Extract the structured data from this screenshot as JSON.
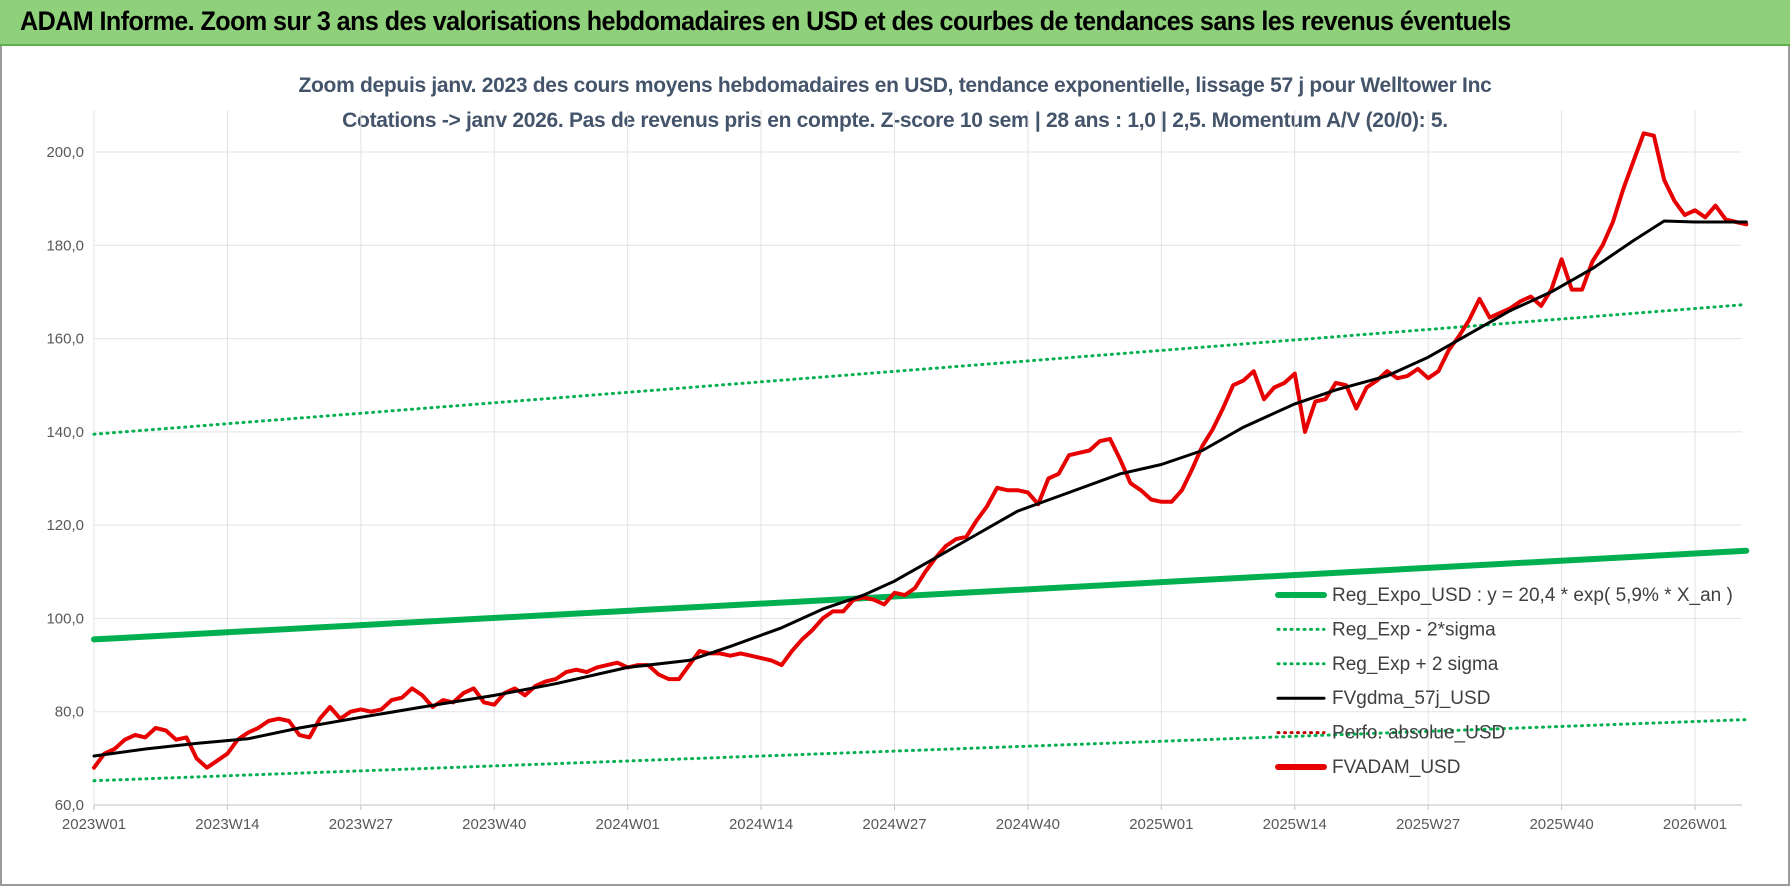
{
  "banner": {
    "title": "ADAM Informe. Zoom sur 3 ans des valorisations hebdomadaires en USD et des courbes de tendances sans les revenus éventuels"
  },
  "colors": {
    "banner_bg": "#8fd07a",
    "title_text": "#44546a",
    "reg_expo": "#00b050",
    "fvgdma": "#000000",
    "perfo": "#c00000",
    "fvadam": "#e60000"
  },
  "chart_data": {
    "type": "line",
    "title": "Zoom depuis janv. 2023 des cours moyens hebdomadaires en USD, tendance exponentielle, lissage 57 j pour Welltower Inc",
    "subtitle": "Cotations -> janv 2026. Pas de revenus pris en compte. Z-score 10 sem | 28 ans : 1,0 | 2,5. Momentum A/V (20/0): 5.",
    "xlabel": "",
    "ylabel": "",
    "ylim": [
      60,
      210
    ],
    "y_ticks": [
      "60,0",
      "80,0",
      "100,0",
      "120,0",
      "140,0",
      "160,0",
      "180,0",
      "200,0"
    ],
    "x_ticks": [
      "2023W01",
      "2023W14",
      "2023W27",
      "2023W40",
      "2024W01",
      "2024W14",
      "2024W27",
      "2024W40",
      "2025W01",
      "2025W14",
      "2025W27",
      "2025W40",
      "2026W01"
    ],
    "x_weeks": [
      0,
      13,
      26,
      39,
      52,
      65,
      78,
      91,
      104,
      117,
      130,
      143,
      156
    ],
    "week_count": 161,
    "grid": true,
    "legend_position": "bottom-right",
    "series": [
      {
        "name": "Reg_Expo_USD : y = 20,4 * exp( 5,9% *  X_an )",
        "style": "solid-thick",
        "color": "#00b050",
        "points": [
          [
            0,
            95.5
          ],
          [
            161,
            114.5
          ]
        ]
      },
      {
        "name": "Reg_Exp - 2*sigma",
        "style": "dotted",
        "color": "#00b050",
        "points": [
          [
            0,
            65.2
          ],
          [
            161,
            78.3
          ]
        ]
      },
      {
        "name": "Reg_Exp + 2 sigma",
        "style": "dotted",
        "color": "#00b050",
        "points": [
          [
            0,
            139.5
          ],
          [
            161,
            167.3
          ]
        ]
      },
      {
        "name": "FVgdma_57j_USD",
        "style": "solid",
        "color": "#000000",
        "points": [
          [
            0,
            70.5
          ],
          [
            5,
            72
          ],
          [
            10,
            73.2
          ],
          [
            15,
            74.2
          ],
          [
            20,
            76.5
          ],
          [
            26,
            78.8
          ],
          [
            32,
            81
          ],
          [
            39,
            83.5
          ],
          [
            45,
            86
          ],
          [
            52,
            89.5
          ],
          [
            58,
            91
          ],
          [
            62,
            94
          ],
          [
            67,
            98
          ],
          [
            71,
            102
          ],
          [
            75,
            105
          ],
          [
            78,
            108
          ],
          [
            82,
            113
          ],
          [
            86,
            118
          ],
          [
            90,
            123
          ],
          [
            95,
            127
          ],
          [
            100,
            131
          ],
          [
            104,
            133
          ],
          [
            108,
            136
          ],
          [
            112,
            141
          ],
          [
            117,
            146
          ],
          [
            121,
            149
          ],
          [
            126,
            152
          ],
          [
            130,
            156
          ],
          [
            134,
            161
          ],
          [
            138,
            166
          ],
          [
            142,
            170
          ],
          [
            146,
            175
          ],
          [
            150,
            181
          ],
          [
            153,
            185.2
          ],
          [
            156,
            185
          ],
          [
            159,
            185
          ],
          [
            161,
            185
          ]
        ]
      },
      {
        "name": "Perfo. absolue_USD",
        "style": "dotted",
        "color": "#c00000",
        "points": []
      },
      {
        "name": "FVADAM_USD",
        "style": "solid-thick",
        "color": "#e60000",
        "points": [
          [
            0,
            68
          ],
          [
            1,
            71
          ],
          [
            2,
            72
          ],
          [
            3,
            74
          ],
          [
            4,
            75
          ],
          [
            5,
            74.5
          ],
          [
            6,
            76.5
          ],
          [
            7,
            76
          ],
          [
            8,
            74
          ],
          [
            9,
            74.5
          ],
          [
            10,
            70
          ],
          [
            11,
            68
          ],
          [
            12,
            69.5
          ],
          [
            13,
            71
          ],
          [
            14,
            74
          ],
          [
            15,
            75.5
          ],
          [
            16,
            76.5
          ],
          [
            17,
            78
          ],
          [
            18,
            78.5
          ],
          [
            19,
            78
          ],
          [
            20,
            75
          ],
          [
            21,
            74.5
          ],
          [
            22,
            78.5
          ],
          [
            23,
            81
          ],
          [
            24,
            78.5
          ],
          [
            25,
            80
          ],
          [
            26,
            80.5
          ],
          [
            27,
            80
          ],
          [
            28,
            80.5
          ],
          [
            29,
            82.5
          ],
          [
            30,
            83
          ],
          [
            31,
            85
          ],
          [
            32,
            83.5
          ],
          [
            33,
            81
          ],
          [
            34,
            82.5
          ],
          [
            35,
            82
          ],
          [
            36,
            84
          ],
          [
            37,
            85
          ],
          [
            38,
            82
          ],
          [
            39,
            81.5
          ],
          [
            40,
            84
          ],
          [
            41,
            85
          ],
          [
            42,
            83.5
          ],
          [
            43,
            85.5
          ],
          [
            44,
            86.5
          ],
          [
            45,
            87
          ],
          [
            46,
            88.5
          ],
          [
            47,
            89
          ],
          [
            48,
            88.5
          ],
          [
            49,
            89.5
          ],
          [
            50,
            90
          ],
          [
            51,
            90.5
          ],
          [
            52,
            89.5
          ],
          [
            53,
            90
          ],
          [
            54,
            90
          ],
          [
            55,
            88
          ],
          [
            56,
            87
          ],
          [
            57,
            87
          ],
          [
            58,
            90
          ],
          [
            59,
            93
          ],
          [
            60,
            92.5
          ],
          [
            61,
            92.5
          ],
          [
            62,
            92
          ],
          [
            63,
            92.5
          ],
          [
            64,
            92
          ],
          [
            65,
            91.5
          ],
          [
            66,
            91
          ],
          [
            67,
            90
          ],
          [
            68,
            93
          ],
          [
            69,
            95.5
          ],
          [
            70,
            97.5
          ],
          [
            71,
            100
          ],
          [
            72,
            101.5
          ],
          [
            73,
            101.5
          ],
          [
            74,
            104
          ],
          [
            75,
            104.5
          ],
          [
            76,
            104
          ],
          [
            77,
            103
          ],
          [
            78,
            105.5
          ],
          [
            79,
            105
          ],
          [
            80,
            106.5
          ],
          [
            81,
            110
          ],
          [
            82,
            113
          ],
          [
            83,
            115.5
          ],
          [
            84,
            117
          ],
          [
            85,
            117.5
          ],
          [
            86,
            121
          ],
          [
            87,
            124
          ],
          [
            88,
            128
          ],
          [
            89,
            127.5
          ],
          [
            90,
            127.5
          ],
          [
            91,
            127
          ],
          [
            92,
            124.5
          ],
          [
            93,
            130
          ],
          [
            94,
            131
          ],
          [
            95,
            135
          ],
          [
            96,
            135.5
          ],
          [
            97,
            136
          ],
          [
            98,
            138
          ],
          [
            99,
            138.5
          ],
          [
            100,
            134
          ],
          [
            101,
            129
          ],
          [
            102,
            127.5
          ],
          [
            103,
            125.5
          ],
          [
            104,
            125
          ],
          [
            105,
            125
          ],
          [
            106,
            127.5
          ],
          [
            107,
            132
          ],
          [
            108,
            137
          ],
          [
            109,
            140.5
          ],
          [
            110,
            145
          ],
          [
            111,
            150
          ],
          [
            112,
            151
          ],
          [
            113,
            153
          ],
          [
            114,
            147
          ],
          [
            115,
            149.5
          ],
          [
            116,
            150.5
          ],
          [
            117,
            152.5
          ],
          [
            118,
            140
          ],
          [
            119,
            146.5
          ],
          [
            120,
            147
          ],
          [
            121,
            150.5
          ],
          [
            122,
            150
          ],
          [
            123,
            145
          ],
          [
            124,
            149.5
          ],
          [
            125,
            151
          ],
          [
            126,
            153
          ],
          [
            127,
            151.5
          ],
          [
            128,
            152
          ],
          [
            129,
            153.5
          ],
          [
            130,
            151.5
          ],
          [
            131,
            153
          ],
          [
            132,
            157.5
          ],
          [
            133,
            160.5
          ],
          [
            134,
            164
          ],
          [
            135,
            168.5
          ],
          [
            136,
            164.5
          ],
          [
            137,
            165.5
          ],
          [
            138,
            166.5
          ],
          [
            139,
            168
          ],
          [
            140,
            169
          ],
          [
            141,
            167
          ],
          [
            142,
            170.5
          ],
          [
            143,
            177
          ],
          [
            144,
            170.5
          ],
          [
            145,
            170.5
          ],
          [
            146,
            176.5
          ],
          [
            147,
            180
          ],
          [
            148,
            185
          ],
          [
            149,
            192
          ],
          [
            150,
            198
          ],
          [
            151,
            204
          ],
          [
            152,
            203.5
          ],
          [
            153,
            194
          ],
          [
            154,
            189.5
          ],
          [
            155,
            186.5
          ],
          [
            156,
            187.5
          ],
          [
            157,
            186
          ],
          [
            158,
            188.5
          ],
          [
            159,
            185.5
          ],
          [
            160,
            185
          ],
          [
            161,
            184.5
          ]
        ]
      }
    ]
  }
}
